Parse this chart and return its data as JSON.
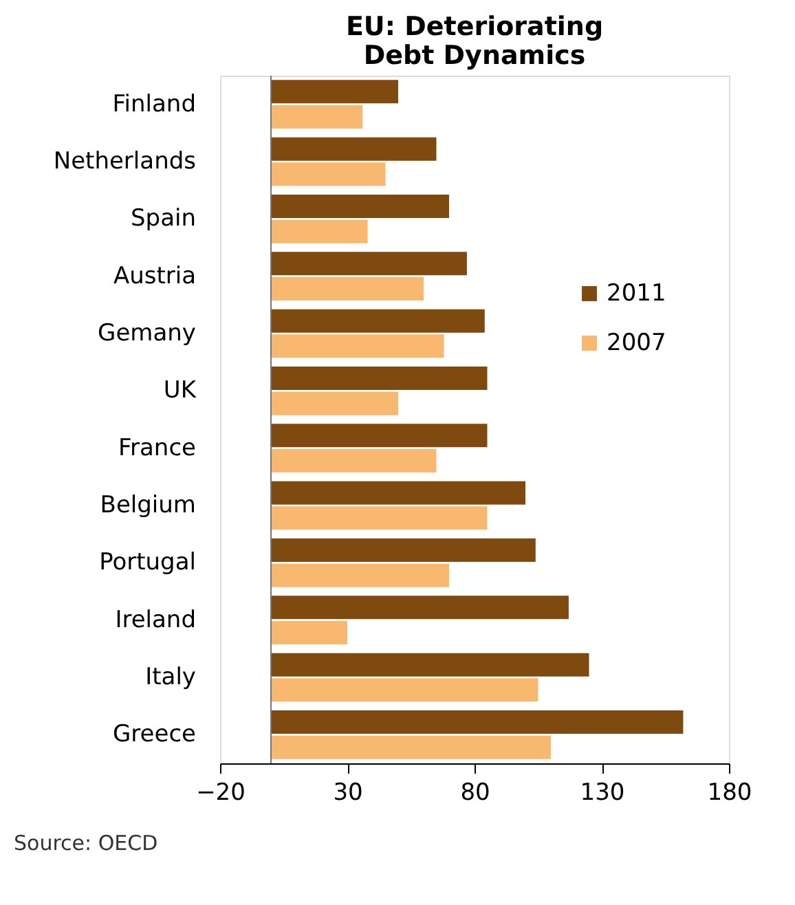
{
  "chart_data": {
    "type": "bar",
    "orientation": "horizontal",
    "title": "EU: Deteriorating Debt Dynamics",
    "categories": [
      "Finland",
      "Netherlands",
      "Spain",
      "Austria",
      "Gemany",
      "UK",
      "France",
      "Belgium",
      "Portugal",
      "Ireland",
      "Italy",
      "Greece"
    ],
    "series": [
      {
        "name": "2011",
        "color": "#7f4a0f",
        "values": [
          50,
          65,
          70,
          77,
          84,
          85,
          85,
          100,
          104,
          117,
          125,
          162
        ]
      },
      {
        "name": "2007",
        "color": "#f8b870",
        "values": [
          36,
          45,
          38,
          60,
          68,
          50,
          65,
          85,
          70,
          30,
          105,
          110
        ]
      }
    ],
    "xlim": [
      -20,
      180
    ],
    "xticks": [
      -20,
      30,
      80,
      130,
      180
    ],
    "grid": false,
    "legend": "right",
    "annotations": [
      "Source:  OECD"
    ]
  }
}
